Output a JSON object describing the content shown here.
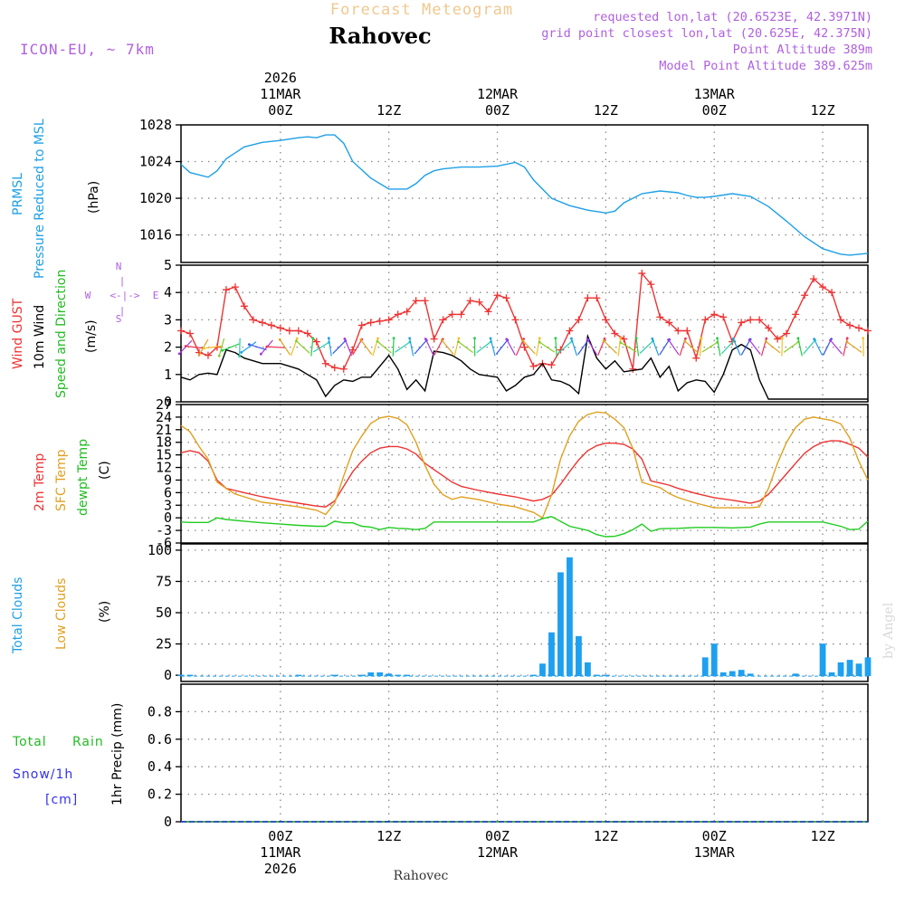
{
  "header": {
    "title": "Forecast Meteogram",
    "location": "Rahovec",
    "model": "ICON-EU, ~ 7km",
    "requested": "requested lon,lat (20.6523E, 42.3971N)",
    "grid_point": "grid point closest lon,lat (20.625E, 42.375N)",
    "point_alt": "Point Altitude 389m",
    "model_alt": "Model Point Altitude 389.625m",
    "footer_location": "Rahovec",
    "credit": "by Angel"
  },
  "time_axis": {
    "start_hour": -11,
    "end_hour": 65,
    "top_labels": [
      {
        "hour": 0,
        "lines": [
          "2026",
          "11MAR",
          "00Z"
        ]
      },
      {
        "hour": 12,
        "lines": [
          "12Z"
        ]
      },
      {
        "hour": 24,
        "lines": [
          "12MAR",
          "00Z"
        ]
      },
      {
        "hour": 36,
        "lines": [
          "12Z"
        ]
      },
      {
        "hour": 48,
        "lines": [
          "13MAR",
          "00Z"
        ]
      },
      {
        "hour": 60,
        "lines": [
          "12Z"
        ]
      }
    ],
    "bottom_labels": [
      {
        "hour": 0,
        "lines": [
          "00Z",
          "11MAR",
          "2026"
        ]
      },
      {
        "hour": 12,
        "lines": [
          "12Z"
        ]
      },
      {
        "hour": 24,
        "lines": [
          "00Z",
          "12MAR"
        ]
      },
      {
        "hour": 36,
        "lines": [
          "12Z"
        ]
      },
      {
        "hour": 48,
        "lines": [
          "00Z",
          "13MAR"
        ]
      },
      {
        "hour": 60,
        "lines": [
          "12Z"
        ]
      }
    ]
  },
  "panel_labels": {
    "pressure": {
      "line1": "PRMSL",
      "line2": "Pressure Reduced to MSL",
      "unit": "(hPa)"
    },
    "wind": {
      "gust": "Wind GUST",
      "wind10": "10m Wind",
      "speed_dir": "Speed and Direction",
      "unit": "(m/s)",
      "compass_w": "W",
      "compass_e": "E",
      "compass_n": "N",
      "compass_s": "S"
    },
    "temp": {
      "t2m": "2m Temp",
      "sfc": "SFC Temp",
      "dewpt": "dewpt Temp",
      "unit": "(C)"
    },
    "clouds": {
      "total": "Total Clouds",
      "low": "Low Clouds",
      "unit": "(%)"
    },
    "precip": {
      "total": "Total",
      "rain": "Rain",
      "snow": "Snow/1h",
      "cm": "[cm]",
      "unit": "1hr Precip (mm)"
    }
  },
  "colors": {
    "pressure": "#1ea0e6",
    "gust": "#ee3333",
    "wind": "#000000",
    "t2m": "#ee3333",
    "sfc": "#e0a020",
    "dewpt": "#22cc22",
    "clouds": "#1ea0f0",
    "rain": "#22cc22",
    "snow": "#3333ee",
    "header": "#b060e0",
    "title": "#f0c890"
  },
  "chart_data": [
    {
      "type": "line",
      "name": "pressure",
      "ylim": [
        1013,
        1028
      ],
      "yticks": [
        1016,
        1020,
        1024,
        1028
      ],
      "series": [
        {
          "name": "PRMSL",
          "x": [
            -11,
            -10,
            -8,
            -7,
            -6,
            -4,
            -2,
            0,
            2,
            3,
            4,
            5,
            6,
            7,
            8,
            10,
            12,
            14,
            15,
            16,
            17,
            18,
            20,
            22,
            24,
            26,
            27,
            28,
            30,
            32,
            34,
            36,
            37,
            38,
            40,
            42,
            44,
            45,
            46,
            47,
            48,
            50,
            52,
            54,
            56,
            58,
            60,
            62,
            63,
            64,
            65
          ],
          "y": [
            1023.7,
            1022.8,
            1022.3,
            1023,
            1024.3,
            1025.6,
            1026.1,
            1026.3,
            1026.6,
            1026.7,
            1026.6,
            1026.9,
            1026.9,
            1026,
            1024,
            1022.2,
            1021,
            1021,
            1021.6,
            1022.5,
            1023,
            1023.2,
            1023.4,
            1023.4,
            1023.5,
            1023.9,
            1023.4,
            1022,
            1020,
            1019.2,
            1018.7,
            1018.4,
            1018.6,
            1019.5,
            1020.5,
            1020.8,
            1020.6,
            1020.3,
            1020.1,
            1020.1,
            1020.2,
            1020.5,
            1020.2,
            1019.1,
            1017.5,
            1015.8,
            1014.5,
            1013.9,
            1013.8,
            1013.9,
            1014
          ]
        }
      ],
      "ylabel": "(hPa)"
    },
    {
      "type": "line",
      "name": "wind",
      "ylim": [
        0,
        5
      ],
      "yticks": [
        0,
        1,
        2,
        3,
        4,
        5
      ],
      "series": [
        {
          "name": "Wind GUST",
          "x": [
            -11,
            -10,
            -9,
            -8,
            -7,
            -6,
            -5,
            -4,
            -3,
            -2,
            -1,
            0,
            1,
            2,
            3,
            4,
            5,
            6,
            7,
            8,
            9,
            10,
            11,
            12,
            13,
            14,
            15,
            16,
            17,
            18,
            19,
            20,
            21,
            22,
            23,
            24,
            25,
            26,
            27,
            28,
            29,
            30,
            31,
            32,
            33,
            34,
            35,
            36,
            37,
            38,
            39,
            40,
            41,
            42,
            43,
            44,
            45,
            46,
            47,
            48,
            49,
            50,
            51,
            52,
            53,
            54,
            55,
            56,
            57,
            58,
            59,
            60,
            61,
            62,
            63,
            64,
            65
          ],
          "y": [
            2.6,
            2.5,
            1.8,
            1.7,
            2.0,
            4.1,
            4.2,
            3.5,
            3.0,
            2.9,
            2.8,
            2.7,
            2.6,
            2.6,
            2.5,
            2.2,
            1.4,
            1.25,
            1.2,
            1.9,
            2.8,
            2.9,
            2.95,
            3.0,
            3.2,
            3.3,
            3.7,
            3.7,
            2.3,
            3.0,
            3.2,
            3.2,
            3.7,
            3.65,
            3.3,
            3.9,
            3.8,
            3.0,
            2.0,
            1.3,
            1.4,
            1.35,
            1.9,
            2.6,
            3.0,
            3.8,
            3.8,
            3.0,
            2.5,
            2.3,
            1.2,
            4.7,
            4.3,
            3.1,
            2.9,
            2.6,
            2.6,
            1.6,
            3.0,
            3.2,
            3.1,
            2.2,
            2.9,
            3.0,
            3.0,
            2.7,
            2.3,
            2.5,
            3.2,
            3.9,
            4.5,
            4.2,
            4.0,
            3.0,
            2.8,
            2.7,
            2.6
          ]
        },
        {
          "name": "10m Wind",
          "x": [
            -11,
            -10,
            -9,
            -8,
            -7,
            -6,
            -5,
            -4,
            -3,
            -2,
            -1,
            0,
            1,
            2,
            3,
            4,
            5,
            6,
            7,
            8,
            9,
            10,
            11,
            12,
            13,
            14,
            15,
            16,
            17,
            18,
            19,
            20,
            21,
            22,
            23,
            24,
            25,
            26,
            27,
            28,
            29,
            30,
            31,
            32,
            33,
            34,
            35,
            36,
            37,
            38,
            39,
            40,
            41,
            42,
            43,
            44,
            45,
            46,
            47,
            48,
            49,
            50,
            51,
            52,
            53,
            54,
            55,
            56,
            57,
            58,
            59,
            60,
            61,
            62,
            63,
            64,
            65
          ],
          "y": [
            0.9,
            0.8,
            1.0,
            1.05,
            1.0,
            1.9,
            1.8,
            1.6,
            1.5,
            1.4,
            1.4,
            1.4,
            1.3,
            1.2,
            1.0,
            0.8,
            0.2,
            0.6,
            0.8,
            0.75,
            0.9,
            0.9,
            1.3,
            1.7,
            1.2,
            0.45,
            0.8,
            0.4,
            1.85,
            1.8,
            1.7,
            1.5,
            1.2,
            1.0,
            0.95,
            0.9,
            0.4,
            0.6,
            0.9,
            1.0,
            1.4,
            0.8,
            0.75,
            0.6,
            0.3,
            2.4,
            1.6,
            1.2,
            1.5,
            1.1,
            1.15,
            1.2,
            1.6,
            0.9,
            1.3,
            0.4,
            0.7,
            0.8,
            0.75,
            0.35,
            1.0,
            1.9,
            2.1,
            1.9,
            0.8,
            0.1,
            0.1,
            0.1,
            0.1,
            0.1,
            0.1,
            0.1,
            0.1,
            0.1,
            0.1,
            0.1,
            0.1
          ]
        }
      ],
      "ylabel": "(m/s)"
    },
    {
      "type": "line",
      "name": "temperature",
      "ylim": [
        -6,
        27
      ],
      "yticks": [
        -6,
        -3,
        0,
        3,
        6,
        9,
        12,
        15,
        18,
        21,
        24,
        27
      ],
      "series": [
        {
          "name": "2m Temp",
          "x": [
            -11,
            -10,
            -9,
            -8,
            -7,
            -6,
            -5,
            -4,
            -2,
            0,
            2,
            4,
            5,
            6,
            7,
            8,
            9,
            10,
            11,
            12,
            13,
            14,
            15,
            16,
            17,
            18,
            19,
            20,
            22,
            24,
            26,
            28,
            29,
            30,
            31,
            32,
            33,
            34,
            35,
            36,
            37,
            38,
            39,
            40,
            41,
            42,
            43,
            44,
            46,
            48,
            50,
            52,
            53,
            54,
            55,
            56,
            57,
            58,
            59,
            60,
            61,
            62,
            63,
            64,
            65
          ],
          "y": [
            15.5,
            16,
            15.5,
            13.5,
            9,
            7,
            6.5,
            6,
            5,
            4.2,
            3.5,
            2.8,
            2.6,
            4,
            7.5,
            11,
            13.5,
            15.5,
            16.6,
            17,
            17,
            16.4,
            15.2,
            13,
            11.5,
            10,
            8.5,
            7.5,
            6.5,
            5.7,
            5,
            4,
            4.4,
            5.4,
            8,
            11,
            13.8,
            16,
            17.2,
            17.8,
            17.8,
            17.5,
            16.4,
            14,
            8.8,
            8.3,
            7.8,
            7,
            5.8,
            4.8,
            4.2,
            3.5,
            4,
            5.6,
            8,
            10.5,
            13,
            15.4,
            17,
            18,
            18.4,
            18.3,
            17.5,
            16.6,
            14.5
          ]
        },
        {
          "name": "SFC Temp",
          "x": [
            -11,
            -10,
            -9,
            -8,
            -7,
            -6,
            -5,
            -4,
            -2,
            0,
            2,
            4,
            5,
            6,
            7,
            8,
            9,
            10,
            11,
            12,
            13,
            14,
            15,
            16,
            17,
            18,
            19,
            20,
            22,
            24,
            26,
            28,
            29,
            30,
            31,
            32,
            33,
            34,
            35,
            36,
            37,
            38,
            39,
            40,
            41,
            42,
            43,
            44,
            46,
            48,
            50,
            52,
            53,
            54,
            55,
            56,
            57,
            58,
            59,
            60,
            61,
            62,
            63,
            64,
            65
          ],
          "y": [
            22,
            20.5,
            17,
            14,
            8.5,
            7,
            5.7,
            5,
            3.7,
            3.2,
            2.6,
            1.8,
            0.8,
            3.5,
            10,
            16,
            19.5,
            22.5,
            23.8,
            24.2,
            23.7,
            22.2,
            18,
            12.5,
            8,
            5.5,
            4.4,
            5,
            4.3,
            3.3,
            2.6,
            1.3,
            0,
            5.5,
            14,
            19.5,
            23,
            24.6,
            25.2,
            25,
            23.5,
            21.5,
            16.5,
            8.5,
            7.8,
            7.2,
            5.8,
            4.8,
            3.5,
            2.4,
            2.4,
            2.4,
            2.6,
            7,
            13,
            18,
            21.5,
            23.5,
            24,
            23.6,
            23.2,
            22.4,
            19,
            13.5,
            9
          ]
        },
        {
          "name": "dewpt Temp",
          "x": [
            -11,
            -10,
            -8,
            -7,
            -6,
            -4,
            -2,
            0,
            2,
            4,
            5,
            6,
            7,
            8,
            9,
            10,
            11,
            12,
            13,
            14,
            15,
            16,
            17,
            18,
            20,
            22,
            24,
            26,
            28,
            29,
            30,
            32,
            34,
            35,
            36,
            37,
            38,
            39,
            40,
            41,
            42,
            44,
            46,
            48,
            50,
            52,
            53,
            54,
            56,
            58,
            60,
            62,
            63,
            64,
            65
          ],
          "y": [
            -1,
            -1.1,
            -1.1,
            0,
            -0.4,
            -0.8,
            -1.2,
            -1.5,
            -1.8,
            -2,
            -2,
            -0.8,
            -1.2,
            -1.2,
            -2,
            -2.2,
            -2.8,
            -2.3,
            -2.5,
            -2.6,
            -2.8,
            -2.5,
            -1,
            -1,
            -1,
            -1,
            -1,
            -1,
            -1,
            -0.2,
            0.3,
            -2,
            -3,
            -4,
            -4.5,
            -4.4,
            -3.8,
            -2.8,
            -1.5,
            -3.2,
            -2.6,
            -2.5,
            -2.3,
            -2.3,
            -2.4,
            -2.2,
            -1.5,
            -1,
            -1,
            -1,
            -1,
            -2,
            -2.8,
            -2.7,
            -0.8
          ]
        }
      ],
      "ylabel": "(C)"
    },
    {
      "type": "bar",
      "name": "clouds",
      "ylim": [
        -5,
        105
      ],
      "yticks": [
        0,
        25,
        50,
        75,
        100
      ],
      "series": [
        {
          "name": "Total Clouds",
          "x": [
            -11,
            -10,
            2,
            6,
            9,
            10,
            11,
            12,
            13,
            14,
            28,
            29,
            30,
            31,
            32,
            33,
            34,
            35,
            36,
            47,
            48,
            49,
            50,
            51,
            52,
            57,
            60,
            61,
            62,
            63,
            64,
            65
          ],
          "y": [
            1,
            0.5,
            0.5,
            0.6,
            0.5,
            3,
            3,
            2,
            1,
            0.5,
            0.5,
            10,
            35,
            83,
            95,
            32,
            11,
            0.5,
            0.3,
            15,
            26,
            3,
            4,
            5,
            2,
            2,
            26,
            3,
            11,
            13,
            10,
            15
          ]
        },
        {
          "name": "Low Clouds",
          "x": [],
          "y": []
        }
      ],
      "ylabel": "(%)"
    },
    {
      "type": "line",
      "name": "precipitation",
      "ylim": [
        0,
        1.0
      ],
      "yticks": [
        0,
        0.2,
        0.4,
        0.6,
        0.8
      ],
      "series": [
        {
          "name": "Total Rain",
          "x": [
            -11,
            65
          ],
          "y": [
            0,
            0
          ]
        },
        {
          "name": "Snow/1h",
          "x": [
            -11,
            65
          ],
          "y": [
            0,
            0
          ]
        }
      ],
      "ylabel": "1hr Precip (mm)"
    }
  ]
}
